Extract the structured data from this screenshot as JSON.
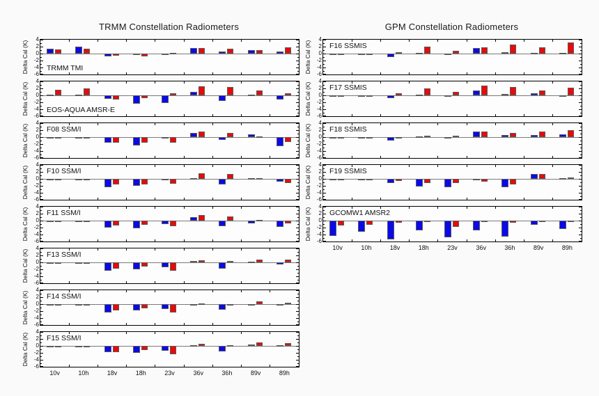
{
  "figure_background": "#fafafa",
  "chart_data": {
    "type": "bar",
    "categories": [
      "10v",
      "10h",
      "18v",
      "18h",
      "23v",
      "36v",
      "36h",
      "89v",
      "89h"
    ],
    "ylabel": "Delta Cal (K)",
    "ylim": [
      -6,
      4
    ],
    "y_ticks": [
      4,
      2,
      0,
      -2,
      -4,
      -6
    ],
    "grid": false,
    "legend": "none",
    "series_colors": {
      "blue": "#0A0AE8",
      "red": "#E80A0A"
    },
    "columns": [
      {
        "title": "TRMM Constellation Radiometers",
        "panels": [
          {
            "name": "TRMM TMI",
            "label_pos": "bottom",
            "blue": [
              1.5,
              2.0,
              -0.8,
              -0.2,
              -0.4,
              1.7,
              0.6,
              1.1,
              0.7
            ],
            "red": [
              1.2,
              1.5,
              -0.6,
              -0.7,
              0.2,
              1.6,
              1.5,
              1.0,
              1.8
            ]
          },
          {
            "name": "EOS-AQUA AMSR-E",
            "label_pos": "bottom",
            "blue": [
              0.3,
              0.3,
              -1.0,
              -2.4,
              -2.2,
              1.0,
              -1.5,
              0.3,
              -1.1
            ],
            "red": [
              1.7,
              2.0,
              -1.2,
              -0.8,
              0.6,
              2.6,
              2.5,
              1.4,
              0.7
            ]
          },
          {
            "name": "F08 SSM/I",
            "label_pos": "top",
            "blue": [
              0,
              0,
              -1.5,
              -2.4,
              -0.2,
              1.3,
              -0.7,
              0.8,
              -2.5
            ],
            "red": [
              0,
              0,
              -1.5,
              -1.5,
              -1.5,
              1.7,
              1.2,
              0.3,
              -1.4
            ]
          },
          {
            "name": "F10 SSM/I",
            "label_pos": "top",
            "blue": [
              0,
              0,
              -2.3,
              -2.0,
              -0.3,
              0.1,
              -1.6,
              0.1,
              -0.8
            ],
            "red": [
              0,
              0,
              -1.6,
              -1.5,
              -1.4,
              1.7,
              1.4,
              0.2,
              -1.2
            ]
          },
          {
            "name": "F11 SSM/I",
            "label_pos": "top",
            "blue": [
              0,
              0,
              -2.0,
              -2.1,
              -1.0,
              1.1,
              -1.5,
              -0.8,
              -1.8
            ],
            "red": [
              0,
              0,
              -1.4,
              -1.2,
              -1.6,
              1.6,
              1.2,
              0.2,
              -0.8
            ]
          },
          {
            "name": "F13 SSM/I",
            "label_pos": "top",
            "blue": [
              0,
              0,
              -2.3,
              -1.9,
              -1.4,
              0.5,
              -1.7,
              0.3,
              -0.6
            ],
            "red": [
              0,
              0,
              -1.7,
              -1.2,
              -2.4,
              0.6,
              0.5,
              0.9,
              0.9
            ]
          },
          {
            "name": "F14 SSM/I",
            "label_pos": "top",
            "blue": [
              0,
              0,
              -2.3,
              -1.8,
              -1.4,
              -0.3,
              -1.6,
              -0.1,
              -0.3
            ],
            "red": [
              0,
              0,
              -1.8,
              -1.1,
              -2.4,
              0.3,
              -0.2,
              0.8,
              0.5
            ]
          },
          {
            "name": "F15 SSM/I",
            "label_pos": "top",
            "blue": [
              0,
              0,
              -1.8,
              -2.0,
              -1.4,
              0.1,
              -1.6,
              0.4,
              0.1
            ],
            "red": [
              0,
              0,
              -1.7,
              -1.1,
              -2.4,
              0.6,
              0.2,
              1.0,
              0.9
            ]
          }
        ]
      },
      {
        "title": "GPM Constellation Radiometers",
        "panels": [
          {
            "name": "F16 SSMIS",
            "label_pos": "top",
            "blue": [
              0,
              0,
              -1.0,
              0.1,
              -0.3,
              1.6,
              0.5,
              0.3,
              0.1
            ],
            "red": [
              0,
              0,
              0.4,
              2.0,
              0.8,
              1.8,
              2.6,
              1.8,
              3.2
            ]
          },
          {
            "name": "F17 SSMIS",
            "label_pos": "top",
            "blue": [
              0,
              0,
              -0.8,
              0.2,
              -0.3,
              1.5,
              0.4,
              0.7,
              -0.1
            ],
            "red": [
              0,
              0,
              0.6,
              2.0,
              1.0,
              2.8,
              2.5,
              1.4,
              2.2
            ]
          },
          {
            "name": "F18 SSMIS",
            "label_pos": "top",
            "blue": [
              0,
              0,
              -1.0,
              0.1,
              -0.3,
              1.6,
              0.6,
              0.7,
              0.8
            ],
            "red": [
              0,
              0,
              -0.2,
              0.4,
              0.5,
              1.7,
              1.3,
              1.6,
              2.1
            ]
          },
          {
            "name": "F19 SSMIS",
            "label_pos": "top",
            "blue": [
              0,
              0,
              -1.2,
              -2.2,
              -2.4,
              -0.1,
              -2.3,
              1.5,
              0.1
            ],
            "red": [
              0,
              0,
              -0.6,
              -1.2,
              -1.2,
              -0.7,
              -1.5,
              1.4,
              0.4
            ]
          },
          {
            "name": "GCOMW1 AMSR2",
            "label_pos": "top",
            "blue": [
              -4.4,
              -3.1,
              -5.3,
              -2.8,
              -4.8,
              -2.7,
              -4.6,
              -1.1,
              -2.4
            ],
            "red": [
              -1.3,
              -1.1,
              -0.6,
              -0.1,
              -1.7,
              -0.4,
              -0.5,
              -0.1,
              -0.1
            ]
          }
        ]
      }
    ]
  }
}
